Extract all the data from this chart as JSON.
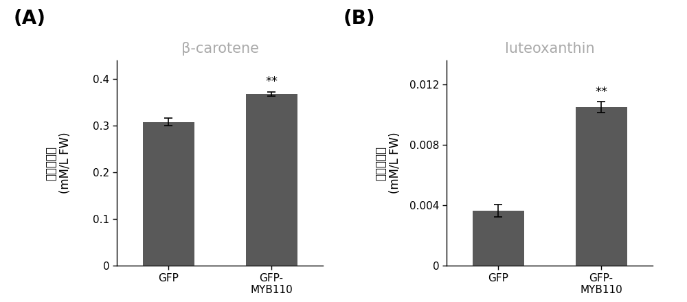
{
  "panel_A": {
    "title": "β-carotene",
    "categories": [
      "GFP",
      "GFP-\nMYB110"
    ],
    "values": [
      0.308,
      0.368
    ],
    "errors": [
      0.008,
      0.005
    ],
    "bar_color": "#595959",
    "ylabel_line1": "化合物含量",
    "ylabel_line2": "(mM/L FW)",
    "ylim": [
      0,
      0.44
    ],
    "yticks": [
      0,
      0.1,
      0.2,
      0.3,
      0.4
    ],
    "ytick_labels": [
      "0",
      "0.1",
      "0.2",
      "0.3",
      "0.4"
    ],
    "significance": [
      "",
      "**"
    ],
    "panel_label": "(A)"
  },
  "panel_B": {
    "title": "luteoxanthin",
    "categories": [
      "GFP",
      "GFP-\nMYB110"
    ],
    "values": [
      0.00365,
      0.0105
    ],
    "errors": [
      0.0004,
      0.00035
    ],
    "bar_color": "#595959",
    "ylabel_line1": "化合物含量",
    "ylabel_line2": "(mM/L FW)",
    "ylim": [
      0,
      0.0136
    ],
    "yticks": [
      0,
      0.004,
      0.008,
      0.012
    ],
    "ytick_labels": [
      "0",
      "0.004",
      "0.008",
      "0.012"
    ],
    "significance": [
      "",
      "**"
    ],
    "panel_label": "(B)"
  },
  "title_color": "#aaaaaa",
  "tick_fontsize": 11,
  "label_fontsize": 12,
  "title_fontsize": 15,
  "panel_label_fontsize": 20,
  "sig_fontsize": 13,
  "background_color": "#ffffff"
}
